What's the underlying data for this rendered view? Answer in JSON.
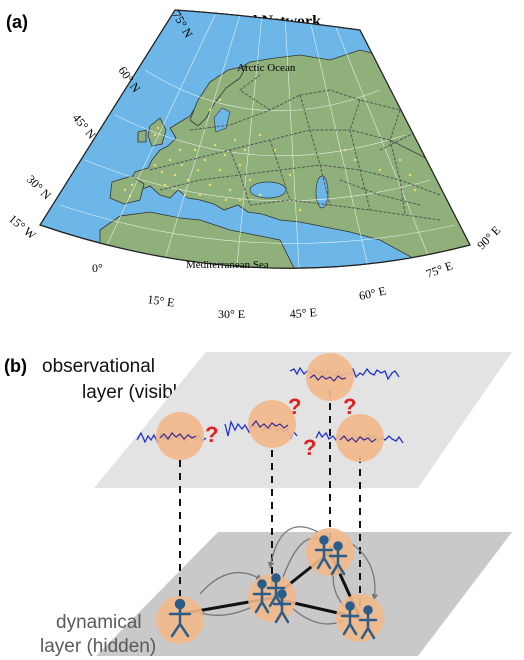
{
  "panel_a": {
    "label": "(a)",
    "title": "E-Road Network",
    "seas": {
      "arctic": "Arctic Ocean",
      "mediterranean": "Mediterranean Sea"
    },
    "lat_labels": [
      "75° N",
      "60° N",
      "45° N",
      "30° N",
      "15° W"
    ],
    "lon_labels": [
      "0°",
      "15° E",
      "30° E",
      "45° E",
      "60° E",
      "75° E",
      "90° E"
    ],
    "colors": {
      "ocean": "#6db7e8",
      "land": "#8fb07a",
      "road": "#555555",
      "city": "#f0dc6e"
    }
  },
  "panel_b": {
    "label": "(b)",
    "observational_line1": "observational",
    "observational_line2": "layer (visible)",
    "dynamical_line1": "dynamical",
    "dynamical_line2": "layer (hidden)",
    "question_mark": "?",
    "colors": {
      "upper_plane": "#e3e3e3",
      "lower_plane": "#c9c9c9",
      "node": "#f2b98a",
      "signal": "#2233cc",
      "person": "#2a5d8a",
      "question": "#e02020"
    }
  }
}
